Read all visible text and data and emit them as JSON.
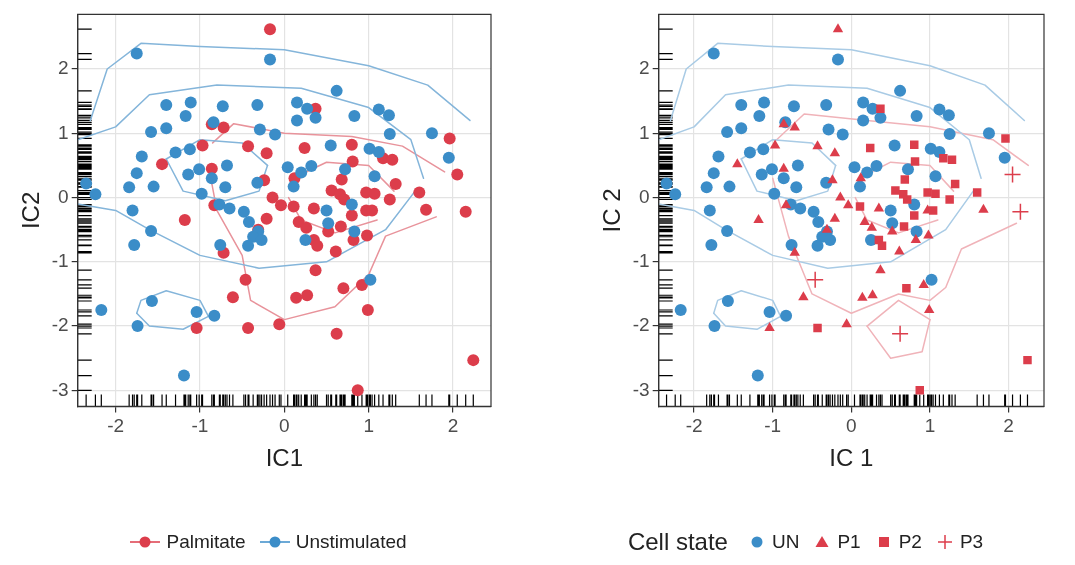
{
  "chart_data": [
    {
      "type": "scatter",
      "xlabel": "IC1",
      "ylabel": "IC2",
      "xlim": [
        -2.45,
        2.45
      ],
      "ylim": [
        -3.25,
        2.85
      ],
      "xticks": [
        -2,
        -1,
        0,
        1,
        2
      ],
      "yticks": [
        -3,
        -2,
        -1,
        0,
        1,
        2
      ],
      "grid": true,
      "legend": "bottom",
      "marker": "circle",
      "series": [
        {
          "name": "Palmitate",
          "color": "#dc3d4b",
          "x": [
            -0.17,
            -0.86,
            -0.72,
            -0.97,
            -0.43,
            -0.21,
            -1.45,
            -0.86,
            -0.24,
            -0.14,
            -0.83,
            -0.21,
            -1.18,
            -0.31,
            -0.72,
            -0.61,
            -1.04,
            -0.06,
            0.12,
            -0.04,
            0.35,
            1.68,
            0.97,
            0.17,
            0.26,
            0.52,
            0.98,
            0.82,
            0.61,
            0.37,
            0.92,
            0.14,
            0.27,
            0.99,
            -0.43,
            0.37,
            1.96,
            0.24,
            0.8,
            1.17,
            1.28,
            0.81,
            0.68,
            1.32,
            1.6,
            0.56,
            0.66,
            0.97,
            1.07,
            0.11,
            0.71,
            1.25,
            1.04,
            0.8,
            0.67,
            0.35,
            0.39,
            0.7,
            2.24,
            0.87,
            -0.46,
            2.05,
            2.15,
            0.62
          ],
          "values": [
            2.62,
            1.14,
            1.09,
            0.81,
            0.8,
            0.69,
            0.52,
            0.45,
            0.27,
            0.0,
            -0.12,
            -0.33,
            -0.35,
            -0.5,
            -0.86,
            -1.55,
            -2.03,
            -1.97,
            0.3,
            -0.12,
            -0.17,
            -0.19,
            -0.2,
            -0.38,
            -0.47,
            -0.53,
            -0.59,
            -0.66,
            -0.84,
            -1.13,
            -1.36,
            -1.56,
            -1.52,
            -1.75,
            -2.03,
            1.38,
            0.92,
            0.77,
            0.82,
            0.61,
            0.59,
            0.56,
            0.28,
            0.21,
            0.08,
            0.11,
            0.05,
            0.08,
            0.06,
            -0.14,
            -0.03,
            -0.03,
            -0.2,
            -0.28,
            -0.45,
            -0.66,
            -0.75,
            -1.41,
            -2.53,
            -3.0,
            -1.28,
            0.36,
            -0.22,
            -2.12
          ]
        },
        {
          "name": "Unstimulated",
          "color": "#3b8dc8",
          "x": [
            -1.75,
            -0.17,
            -1.4,
            -1.11,
            -0.73,
            -0.32,
            -1.17,
            -1.58,
            -1.4,
            -0.84,
            -0.29,
            -0.11,
            -1.69,
            -1.29,
            -1.12,
            -0.68,
            -1.75,
            -1.14,
            -1.01,
            -0.86,
            -2.35,
            -1.84,
            -1.55,
            -0.32,
            -2.24,
            -0.98,
            -0.7,
            -1.8,
            -0.77,
            -0.65,
            -0.48,
            -0.42,
            -1.58,
            -0.31,
            -0.37,
            -0.27,
            -1.78,
            -0.76,
            -0.43,
            -1.57,
            -2.17,
            -1.04,
            -0.83,
            -1.74,
            -1.19,
            0.62,
            0.15,
            0.27,
            0.37,
            0.15,
            0.83,
            1.12,
            1.24,
            1.25,
            1.75,
            0.55,
            1.01,
            1.12,
            1.95,
            0.04,
            0.32,
            0.2,
            0.72,
            1.07,
            0.11,
            0.8,
            0.5,
            0.52,
            0.83,
            0.25,
            1.02
          ],
          "values": [
            2.24,
            2.15,
            1.44,
            1.48,
            1.42,
            1.44,
            1.27,
            1.02,
            1.08,
            1.17,
            1.06,
            0.98,
            0.64,
            0.7,
            0.75,
            0.5,
            0.38,
            0.36,
            0.44,
            0.3,
            0.22,
            0.16,
            0.17,
            0.23,
            0.05,
            0.06,
            0.16,
            -0.2,
            -0.11,
            -0.17,
            -0.22,
            -0.38,
            -0.52,
            -0.53,
            -0.61,
            -0.66,
            -0.74,
            -0.74,
            -0.75,
            -1.61,
            -1.75,
            -1.78,
            -1.84,
            -2.0,
            -2.77,
            1.66,
            1.48,
            1.38,
            1.24,
            1.2,
            1.27,
            1.37,
            1.28,
            0.99,
            1.0,
            0.81,
            0.76,
            0.71,
            0.62,
            0.47,
            0.49,
            0.39,
            0.44,
            0.33,
            0.17,
            -0.11,
            -0.2,
            -0.4,
            -0.53,
            -0.66,
            -1.28
          ]
        },
        {
          "type": "line",
          "color": "#84b5da",
          "marker": "none",
          "x": [
            -2.3,
            -2.1,
            -1.7,
            -1.0,
            0,
            1.0,
            1.7,
            2.2
          ],
          "values": [
            1.2,
            2.0,
            2.4,
            2.35,
            2.3,
            2.05,
            1.75,
            1.2
          ]
        },
        {
          "type": "line",
          "color": "#84b5da",
          "marker": "none",
          "x": [
            -2.45,
            -2.0,
            -1.6,
            -0.8,
            0.2,
            1.0,
            1.5,
            1.65
          ],
          "values": [
            0.9,
            1.1,
            1.6,
            1.75,
            1.7,
            1.4,
            0.9,
            0.3
          ]
        },
        {
          "type": "line",
          "color": "#84b5da",
          "marker": "none",
          "x": [
            -2.45,
            -2.0,
            -1.6,
            -1.0,
            -0.3,
            0.5,
            1.2,
            1.55
          ],
          "values": [
            -0.1,
            -0.2,
            -0.5,
            -0.9,
            -1.1,
            -1.0,
            -0.5,
            0.1
          ]
        },
        {
          "type": "line",
          "color": "#84b5da",
          "marker": "none",
          "x": [
            -1.4,
            -1.0,
            -0.5,
            -0.2
          ],
          "values": [
            0.6,
            0.9,
            0.85,
            0.5
          ]
        },
        {
          "type": "line",
          "color": "#84b5da",
          "marker": "none",
          "x": [
            -1.4,
            -1.2,
            -0.7,
            -0.3,
            -0.2
          ],
          "values": [
            0.6,
            0.1,
            -0.05,
            0.1,
            0.5
          ]
        },
        {
          "type": "line",
          "color": "#84b5da",
          "marker": "none",
          "x": [
            -1.75,
            -1.7,
            -1.4,
            -1.0,
            -0.9
          ],
          "values": [
            -1.8,
            -1.6,
            -1.45,
            -1.6,
            -1.85
          ]
        },
        {
          "type": "line",
          "color": "#84b5da",
          "marker": "none",
          "x": [
            -1.75,
            -1.6,
            -1.2,
            -0.9
          ],
          "values": [
            -1.8,
            -2.0,
            -2.05,
            -1.85
          ]
        },
        {
          "type": "line",
          "color": "#e8939b",
          "marker": "none",
          "x": [
            -0.85,
            -0.6,
            0,
            0.8,
            1.4,
            1.9
          ],
          "values": [
            0.85,
            1.15,
            1.0,
            0.95,
            0.8,
            0.4
          ]
        },
        {
          "type": "line",
          "color": "#e8939b",
          "marker": "none",
          "x": [
            -0.9,
            -0.8,
            -0.5,
            -0.4,
            0,
            0.6,
            1.0,
            1.2,
            1.8
          ],
          "values": [
            0.5,
            -0.2,
            -0.9,
            -1.6,
            -1.9,
            -1.7,
            -1.2,
            -0.6,
            -0.3
          ]
        },
        {
          "type": "line",
          "color": "#e8939b",
          "marker": "none",
          "x": [
            0.1,
            0.5,
            1.0,
            1.3
          ],
          "values": [
            0.3,
            0.55,
            0.5,
            0.1
          ]
        },
        {
          "type": "line",
          "color": "#e8939b",
          "marker": "none",
          "x": [
            0.05,
            0.2,
            0.6,
            1.1
          ],
          "values": [
            0,
            -0.35,
            -0.55,
            -0.35
          ]
        }
      ]
    },
    {
      "type": "scatter",
      "xlabel": "IC 1",
      "ylabel": "IC 2",
      "legend_title": "Cell state",
      "xlim": [
        -2.45,
        2.45
      ],
      "ylim": [
        -3.25,
        2.85
      ],
      "xticks": [
        -2,
        -1,
        0,
        1,
        2
      ],
      "yticks": [
        -3,
        -2,
        -1,
        0,
        1,
        2
      ],
      "grid": true,
      "legend": "bottom",
      "series": [
        {
          "name": "UN",
          "color": "#3b8dc8",
          "marker": "circle",
          "x": [
            -1.75,
            -0.17,
            -1.4,
            -1.11,
            -0.73,
            -0.32,
            -1.17,
            -1.58,
            -1.4,
            -0.84,
            -0.29,
            -0.11,
            -1.69,
            -1.29,
            -1.12,
            -0.68,
            -1.75,
            -1.14,
            -1.01,
            -0.86,
            -2.35,
            -1.84,
            -1.55,
            -0.32,
            -2.24,
            -0.98,
            -0.7,
            -1.8,
            -0.77,
            -0.65,
            -0.48,
            -0.42,
            -1.58,
            -0.31,
            -0.37,
            -0.27,
            -1.78,
            -0.76,
            -0.43,
            -1.57,
            -2.17,
            -1.04,
            -0.83,
            -1.74,
            -1.19,
            0.62,
            0.15,
            0.27,
            0.37,
            0.15,
            0.83,
            1.12,
            1.24,
            1.25,
            1.75,
            0.55,
            1.01,
            1.12,
            1.95,
            0.04,
            0.32,
            0.2,
            0.72,
            1.07,
            0.11,
            0.8,
            0.5,
            0.52,
            0.83,
            0.25,
            1.02
          ],
          "values": [
            2.24,
            2.15,
            1.44,
            1.48,
            1.42,
            1.44,
            1.27,
            1.02,
            1.08,
            1.17,
            1.06,
            0.98,
            0.64,
            0.7,
            0.75,
            0.5,
            0.38,
            0.36,
            0.44,
            0.3,
            0.22,
            0.16,
            0.17,
            0.23,
            0.05,
            0.06,
            0.16,
            -0.2,
            -0.11,
            -0.17,
            -0.22,
            -0.38,
            -0.52,
            -0.53,
            -0.61,
            -0.66,
            -0.74,
            -0.74,
            -0.75,
            -1.61,
            -1.75,
            -1.78,
            -1.84,
            -2.0,
            -2.77,
            1.66,
            1.48,
            1.38,
            1.24,
            1.2,
            1.27,
            1.37,
            1.28,
            0.99,
            1.0,
            0.81,
            0.76,
            0.71,
            0.62,
            0.47,
            0.49,
            0.39,
            0.44,
            0.33,
            0.17,
            -0.11,
            -0.2,
            -0.4,
            -0.53,
            -0.66,
            -1.28
          ]
        },
        {
          "name": "P1",
          "color": "#dc3d4b",
          "marker": "triangle",
          "x": [
            -0.17,
            -0.86,
            -0.72,
            -0.97,
            -0.43,
            -0.21,
            -1.45,
            -0.86,
            -0.24,
            -0.14,
            -0.83,
            -0.21,
            -1.18,
            -0.31,
            -0.72,
            -0.61,
            -1.04,
            -0.06,
            0.12,
            -0.04,
            0.35,
            1.68,
            0.97,
            0.17,
            0.26,
            0.52,
            0.98,
            0.82,
            0.61,
            0.37,
            0.92,
            0.14,
            0.27,
            0.99
          ],
          "values": [
            2.62,
            1.14,
            1.09,
            0.81,
            0.8,
            0.69,
            0.52,
            0.45,
            0.27,
            0.0,
            -0.12,
            -0.33,
            -0.35,
            -0.5,
            -0.86,
            -1.55,
            -2.03,
            -1.97,
            0.3,
            -0.12,
            -0.17,
            -0.19,
            -0.2,
            -0.38,
            -0.47,
            -0.53,
            -0.59,
            -0.66,
            -0.84,
            -1.13,
            -1.36,
            -1.56,
            -1.52,
            -1.75
          ]
        },
        {
          "name": "P2",
          "color": "#dc3d4b",
          "marker": "square",
          "x": [
            -0.43,
            0.37,
            1.96,
            0.24,
            0.8,
            1.17,
            1.28,
            0.81,
            0.68,
            1.32,
            1.6,
            0.56,
            0.66,
            0.97,
            1.07,
            0.11,
            0.71,
            1.25,
            1.04,
            0.8,
            0.67,
            0.35,
            0.39,
            0.7,
            2.24,
            0.87
          ],
          "values": [
            -2.03,
            1.38,
            0.92,
            0.77,
            0.82,
            0.61,
            0.59,
            0.56,
            0.28,
            0.21,
            0.08,
            0.11,
            0.05,
            0.08,
            0.06,
            -0.14,
            -0.03,
            -0.03,
            -0.2,
            -0.28,
            -0.45,
            -0.66,
            -0.75,
            -1.41,
            -2.53,
            -3.0
          ]
        },
        {
          "name": "P3",
          "color": "#dc3d4b",
          "marker": "cross",
          "x": [
            -0.46,
            2.05,
            2.15,
            0.62
          ],
          "values": [
            -1.28,
            0.36,
            -0.22,
            -2.12
          ]
        },
        {
          "type": "line",
          "color": "#a9cbe5",
          "marker": "none",
          "x": [
            -2.3,
            -2.1,
            -1.7,
            -1.0,
            0,
            1.0,
            1.7,
            2.2
          ],
          "values": [
            1.2,
            2.0,
            2.4,
            2.35,
            2.3,
            2.05,
            1.75,
            1.2
          ]
        },
        {
          "type": "line",
          "color": "#a9cbe5",
          "marker": "none",
          "x": [
            -2.45,
            -2.0,
            -1.6,
            -0.8,
            0.2,
            1.0,
            1.5,
            1.65
          ],
          "values": [
            0.9,
            1.1,
            1.6,
            1.75,
            1.7,
            1.4,
            0.9,
            0.3
          ]
        },
        {
          "type": "line",
          "color": "#a9cbe5",
          "marker": "none",
          "x": [
            -2.45,
            -2.0,
            -1.6,
            -1.0,
            -0.3,
            0.5,
            1.2,
            1.55
          ],
          "values": [
            -0.1,
            -0.2,
            -0.5,
            -0.9,
            -1.1,
            -1.0,
            -0.5,
            0.1
          ]
        },
        {
          "type": "line",
          "color": "#a9cbe5",
          "marker": "none",
          "x": [
            -1.4,
            -1.0,
            -0.5,
            -0.2
          ],
          "values": [
            0.6,
            0.9,
            0.85,
            0.5
          ]
        },
        {
          "type": "line",
          "color": "#a9cbe5",
          "marker": "none",
          "x": [
            -1.4,
            -1.2,
            -0.7,
            -0.3,
            -0.2
          ],
          "values": [
            0.6,
            0.1,
            -0.05,
            0.1,
            0.5
          ]
        },
        {
          "type": "line",
          "color": "#a9cbe5",
          "marker": "none",
          "x": [
            -1.75,
            -1.7,
            -1.4,
            -1.0,
            -0.9
          ],
          "values": [
            -1.8,
            -1.6,
            -1.45,
            -1.6,
            -1.85
          ]
        },
        {
          "type": "line",
          "color": "#a9cbe5",
          "marker": "none",
          "x": [
            -1.75,
            -1.6,
            -1.2,
            -0.9
          ],
          "values": [
            -1.8,
            -2.0,
            -2.05,
            -1.85
          ]
        },
        {
          "type": "line",
          "color": "#f0b3b9",
          "marker": "none",
          "x": [
            -0.95,
            -0.6,
            0.2,
            1.0,
            1.8,
            2.25
          ],
          "values": [
            0.9,
            1.3,
            1.2,
            1.1,
            0.9,
            0.5
          ]
        },
        {
          "type": "line",
          "color": "#f0b3b9",
          "marker": "none",
          "x": [
            -1.0,
            -0.8,
            -0.5,
            0,
            0.6,
            1.0,
            1.2,
            1.4,
            2.1
          ],
          "values": [
            0.3,
            -0.6,
            -1.5,
            -1.8,
            -1.5,
            -1.6,
            -1.4,
            -0.8,
            -0.4
          ]
        },
        {
          "type": "line",
          "color": "#f0b3b9",
          "marker": "none",
          "x": [
            0.1,
            0.5,
            1.0,
            1.3
          ],
          "values": [
            0.3,
            0.55,
            0.5,
            0.1
          ]
        },
        {
          "type": "line",
          "color": "#f0b3b9",
          "marker": "none",
          "x": [
            0.05,
            0.2,
            0.6,
            1.1
          ],
          "values": [
            0,
            -0.35,
            -0.55,
            -0.35
          ]
        },
        {
          "type": "line",
          "color": "#f0b3b9",
          "marker": "none",
          "x": [
            0.2,
            0.6,
            1.0
          ],
          "values": [
            -2.0,
            -1.6,
            -1.9
          ]
        },
        {
          "type": "line",
          "color": "#f0b3b9",
          "marker": "none",
          "x": [
            0.2,
            0.5,
            0.9,
            1.0
          ],
          "values": [
            -2.0,
            -2.5,
            -2.4,
            -1.9
          ]
        }
      ]
    }
  ]
}
